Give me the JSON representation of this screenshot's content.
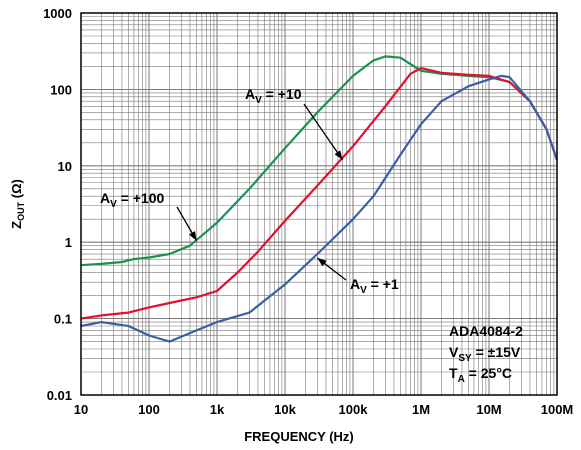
{
  "chart_data": {
    "type": "line",
    "title": "",
    "xlabel": "FREQUENCY (Hz)",
    "ylabel": {
      "main": "Z",
      "sub": "OUT",
      "unit": " (Ω)"
    },
    "xscale": "log",
    "yscale": "log",
    "xlim": [
      10,
      100000000
    ],
    "ylim": [
      0.01,
      1000
    ],
    "grid": true,
    "x_tick_labels": [
      "10",
      "100",
      "1k",
      "10k",
      "100k",
      "1M",
      "10M",
      "100M"
    ],
    "y_tick_labels": [
      "1000",
      "100",
      "10",
      "1",
      "0.1",
      "0.01"
    ],
    "series": [
      {
        "name": "AV = +100",
        "color": "#1a9150",
        "x": [
          10,
          20,
          40,
          60,
          100,
          200,
          400,
          1000,
          3000,
          10000,
          30000,
          100000,
          200000,
          300000,
          500000,
          1000000,
          2000000,
          5000000,
          10000000,
          20000000,
          40000000,
          70000000,
          100000000
        ],
        "y": [
          0.5,
          0.52,
          0.55,
          0.6,
          0.63,
          0.7,
          0.9,
          1.8,
          5,
          17,
          50,
          150,
          240,
          270,
          260,
          175,
          160,
          150,
          145,
          125,
          70,
          30,
          12
        ]
      },
      {
        "name": "AV = +10",
        "color": "#e0102e",
        "x": [
          10,
          20,
          50,
          100,
          200,
          500,
          1000,
          2000,
          4000,
          10000,
          30000,
          100000,
          300000,
          700000,
          1000000,
          2000000,
          5000000,
          10000000,
          20000000,
          40000000,
          70000000,
          100000000
        ],
        "y": [
          0.1,
          0.11,
          0.12,
          0.14,
          0.16,
          0.19,
          0.23,
          0.4,
          0.75,
          1.9,
          5.5,
          18,
          60,
          160,
          190,
          165,
          155,
          150,
          125,
          70,
          30,
          12
        ]
      },
      {
        "name": "AV = +1",
        "color": "#3b5fa3",
        "x": [
          10,
          20,
          50,
          100,
          200,
          500,
          1000,
          3000,
          10000,
          30000,
          100000,
          200000,
          500000,
          1000000,
          2000000,
          5000000,
          10000000,
          15000000,
          20000000,
          40000000,
          70000000,
          100000000
        ],
        "y": [
          0.08,
          0.09,
          0.08,
          0.06,
          0.05,
          0.07,
          0.09,
          0.12,
          0.28,
          0.7,
          2,
          4,
          14,
          35,
          70,
          110,
          135,
          150,
          145,
          70,
          30,
          12
        ]
      }
    ],
    "annotations": [
      {
        "text": "A",
        "sub": "V",
        "rest": " = +100",
        "series": "AV = +100",
        "arrow_to": {
          "x": 500,
          "y": 1.05
        }
      },
      {
        "text": "A",
        "sub": "V",
        "rest": " = +10",
        "series": "AV = +10",
        "arrow_to": {
          "x": 70000,
          "y": 12
        }
      },
      {
        "text": "A",
        "sub": "V",
        "rest": " = +1",
        "series": "AV = +1",
        "arrow_to": {
          "x": 30000,
          "y": 0.62
        }
      }
    ],
    "info_box": {
      "line1": "ADA4084-2",
      "line2": {
        "main": "V",
        "sub": "SY",
        "rest": " = ±15V"
      },
      "line3": {
        "main": "T",
        "sub": "A",
        "rest": " = 25°C"
      }
    }
  }
}
